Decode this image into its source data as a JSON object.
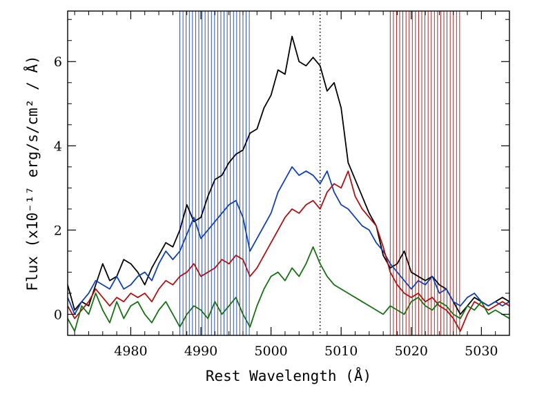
{
  "chart_data": {
    "type": "line",
    "xlabel": "Rest Wavelength (Å)",
    "ylabel": "Flux (x10⁻¹⁷ erg/s/cm² / Å)",
    "xlim": [
      4971,
      5034
    ],
    "ylim": [
      -0.5,
      7.2
    ],
    "xticks": [
      4980,
      4990,
      5000,
      5010,
      5020,
      5030
    ],
    "yticks": [
      0,
      2,
      4,
      6
    ],
    "grid": false,
    "reference_line": {
      "x": 5007,
      "style": "dotted",
      "color": "#000000"
    },
    "bands": [
      {
        "x_start": 4987,
        "x_end": 4997,
        "color": "#1a3fb0",
        "style": "vertical-hatch"
      },
      {
        "x_start": 5017,
        "x_end": 5027,
        "color": "#a81010",
        "style": "vertical-hatch"
      }
    ],
    "series": [
      {
        "color": "#000000",
        "x": [
          4971,
          4972,
          4973,
          4974,
          4975,
          4976,
          4977,
          4978,
          4979,
          4980,
          4981,
          4982,
          4983,
          4984,
          4985,
          4986,
          4987,
          4988,
          4989,
          4990,
          4991,
          4992,
          4993,
          4994,
          4995,
          4996,
          4997,
          4998,
          4999,
          5000,
          5001,
          5002,
          5003,
          5004,
          5005,
          5006,
          5007,
          5008,
          5009,
          5010,
          5011,
          5012,
          5013,
          5014,
          5015,
          5016,
          5017,
          5018,
          5019,
          5020,
          5021,
          5022,
          5023,
          5024,
          5025,
          5026,
          5027,
          5028,
          5029,
          5030,
          5031,
          5032,
          5033,
          5034
        ],
        "values": [
          0.7,
          0.1,
          0.3,
          0.2,
          0.7,
          1.2,
          0.8,
          0.9,
          1.3,
          1.2,
          1.0,
          0.7,
          1.1,
          1.4,
          1.7,
          1.6,
          2.0,
          2.6,
          2.2,
          2.3,
          2.8,
          3.2,
          3.3,
          3.6,
          3.8,
          3.9,
          4.3,
          4.4,
          4.9,
          5.2,
          5.8,
          5.7,
          6.6,
          6.0,
          5.9,
          6.1,
          5.9,
          5.3,
          5.5,
          4.9,
          3.6,
          3.2,
          2.8,
          2.4,
          2.1,
          1.4,
          1.1,
          1.2,
          1.5,
          1.0,
          0.9,
          0.8,
          0.9,
          0.7,
          0.6,
          0.3,
          0.0,
          0.2,
          0.4,
          0.3,
          0.2,
          0.3,
          0.4,
          0.3
        ]
      },
      {
        "color": "#1040b8",
        "x": [
          4971,
          4972,
          4973,
          4974,
          4975,
          4976,
          4977,
          4978,
          4979,
          4980,
          4981,
          4982,
          4983,
          4984,
          4985,
          4986,
          4987,
          4988,
          4989,
          4990,
          4991,
          4992,
          4993,
          4994,
          4995,
          4996,
          4997,
          4998,
          4999,
          5000,
          5001,
          5002,
          5003,
          5004,
          5005,
          5006,
          5007,
          5008,
          5009,
          5010,
          5011,
          5012,
          5013,
          5014,
          5015,
          5016,
          5017,
          5018,
          5019,
          5020,
          5021,
          5022,
          5023,
          5024,
          5025,
          5026,
          5027,
          5028,
          5029,
          5030,
          5031,
          5032,
          5033,
          5034
        ],
        "values": [
          0.4,
          0.0,
          0.3,
          0.5,
          0.8,
          0.7,
          0.6,
          0.9,
          0.6,
          0.7,
          0.9,
          1.0,
          0.8,
          1.2,
          1.5,
          1.3,
          1.5,
          1.9,
          2.3,
          1.8,
          2.0,
          2.2,
          2.4,
          2.6,
          2.7,
          2.3,
          1.5,
          1.8,
          2.1,
          2.4,
          2.9,
          3.2,
          3.5,
          3.3,
          3.4,
          3.3,
          3.1,
          3.4,
          2.9,
          2.6,
          2.5,
          2.3,
          2.1,
          2.0,
          1.7,
          1.5,
          1.2,
          1.0,
          0.8,
          0.6,
          0.8,
          0.7,
          0.9,
          0.5,
          0.6,
          0.3,
          0.2,
          0.4,
          0.5,
          0.3,
          0.2,
          0.3,
          0.2,
          0.3
        ]
      },
      {
        "color": "#b01010",
        "x": [
          4971,
          4972,
          4973,
          4974,
          4975,
          4976,
          4977,
          4978,
          4979,
          4980,
          4981,
          4982,
          4983,
          4984,
          4985,
          4986,
          4987,
          4988,
          4989,
          4990,
          4991,
          4992,
          4993,
          4994,
          4995,
          4996,
          4997,
          4998,
          4999,
          5000,
          5001,
          5002,
          5003,
          5004,
          5005,
          5006,
          5007,
          5008,
          5009,
          5010,
          5011,
          5012,
          5013,
          5014,
          5015,
          5016,
          5017,
          5018,
          5019,
          5020,
          5021,
          5022,
          5023,
          5024,
          5025,
          5026,
          5027,
          5028,
          5029,
          5030,
          5031,
          5032,
          5033,
          5034
        ],
        "values": [
          0.2,
          -0.1,
          0.1,
          0.3,
          0.6,
          0.4,
          0.2,
          0.4,
          0.3,
          0.5,
          0.4,
          0.5,
          0.3,
          0.6,
          0.8,
          0.7,
          0.9,
          1.0,
          1.2,
          0.9,
          1.0,
          1.1,
          1.3,
          1.2,
          1.4,
          1.3,
          0.9,
          1.1,
          1.4,
          1.7,
          2.0,
          2.3,
          2.5,
          2.4,
          2.6,
          2.7,
          2.5,
          2.9,
          3.1,
          3.0,
          3.4,
          2.8,
          2.5,
          2.3,
          2.1,
          1.6,
          1.0,
          0.7,
          0.5,
          0.4,
          0.5,
          0.3,
          0.4,
          0.2,
          0.1,
          -0.1,
          -0.4,
          0.0,
          0.3,
          0.2,
          0.1,
          0.2,
          0.3,
          0.2
        ]
      },
      {
        "color": "#157010",
        "x": [
          4971,
          4972,
          4973,
          4974,
          4975,
          4976,
          4977,
          4978,
          4979,
          4980,
          4981,
          4982,
          4983,
          4984,
          4985,
          4986,
          4987,
          4988,
          4989,
          4990,
          4991,
          4992,
          4993,
          4994,
          4995,
          4996,
          4997,
          4998,
          4999,
          5000,
          5001,
          5002,
          5003,
          5004,
          5005,
          5006,
          5007,
          5008,
          5009,
          5010,
          5011,
          5012,
          5013,
          5014,
          5015,
          5016,
          5017,
          5018,
          5019,
          5020,
          5021,
          5022,
          5023,
          5024,
          5025,
          5026,
          5027,
          5028,
          5029,
          5030,
          5031,
          5032,
          5033,
          5034
        ],
        "values": [
          -0.1,
          -0.4,
          0.2,
          0.0,
          0.5,
          0.1,
          -0.2,
          0.3,
          -0.1,
          0.2,
          0.3,
          0.0,
          -0.2,
          0.1,
          0.3,
          0.0,
          -0.3,
          0.0,
          0.2,
          0.1,
          -0.1,
          0.3,
          0.0,
          0.2,
          0.4,
          0.0,
          -0.3,
          0.2,
          0.6,
          0.9,
          1.0,
          0.8,
          1.1,
          0.9,
          1.2,
          1.6,
          1.2,
          0.9,
          0.7,
          0.6,
          0.5,
          0.4,
          0.3,
          0.2,
          0.1,
          0.0,
          0.2,
          0.1,
          0.0,
          0.3,
          0.4,
          0.2,
          0.1,
          0.3,
          0.2,
          0.0,
          -0.1,
          0.2,
          0.1,
          0.3,
          0.0,
          0.1,
          0.0,
          -0.1
        ]
      }
    ]
  }
}
